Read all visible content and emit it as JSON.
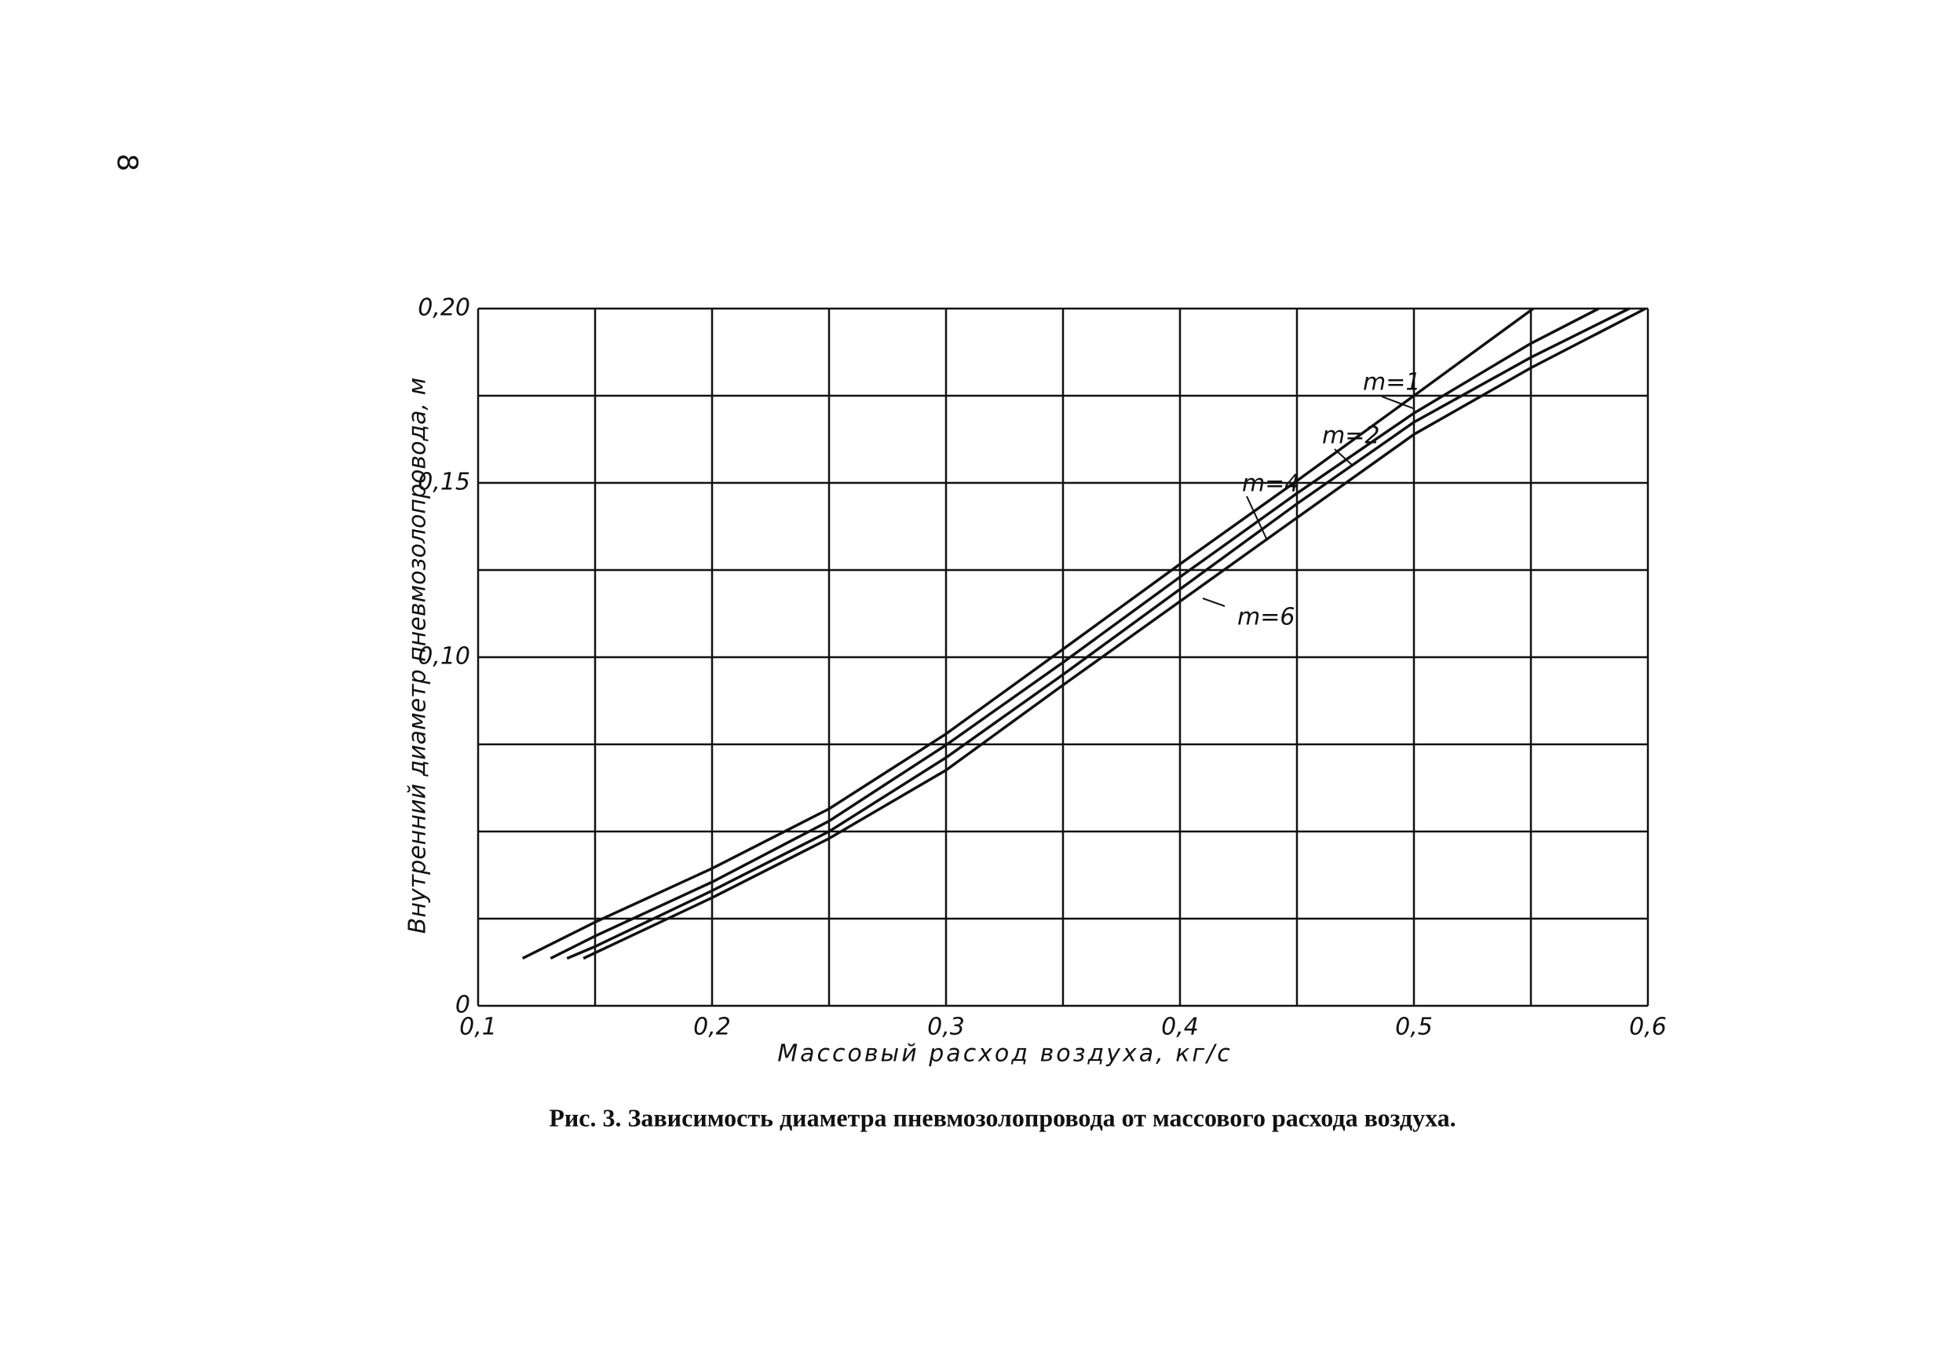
{
  "page_number": "8",
  "chart_data": {
    "type": "line",
    "y_label": "Внутренний диаметр пневмозолопровода, м",
    "x_label": "Массовый расход воздуха, кг/с",
    "caption": "Рис. 3. Зависимость диаметра пневмозолопровода от массового расхода воздуха.",
    "xlim": [
      0.1,
      0.6
    ],
    "ylim": [
      0,
      0.2
    ],
    "xticks": [
      {
        "value": 0.1,
        "label": "0,1"
      },
      {
        "value": 0.2,
        "label": "0,2"
      },
      {
        "value": 0.3,
        "label": "0,3"
      },
      {
        "value": 0.4,
        "label": "0,4"
      },
      {
        "value": 0.5,
        "label": "0,5"
      },
      {
        "value": 0.6,
        "label": "0,6"
      }
    ],
    "yticks": [
      0,
      {
        "value": 0.1,
        "label": "0,10"
      },
      {
        "value": 0.15,
        "label": "0,15"
      },
      {
        "value": 0.2,
        "label": "0,20"
      }
    ],
    "xgrid": [
      0.1,
      0.15,
      0.2,
      0.25,
      0.3,
      0.35,
      0.4,
      0.45,
      0.5,
      0.55,
      0.6
    ],
    "ygrid": [
      0,
      0.025,
      0.05,
      0.075,
      0.1,
      0.125,
      0.15,
      0.175,
      0.2
    ],
    "grid": true,
    "series": [
      {
        "name": "m=1",
        "color": "#111111",
        "x": [
          0.119,
          0.15,
          0.2,
          0.25,
          0.3,
          0.35,
          0.4,
          0.45,
          0.5,
          0.551
        ],
        "values": [
          0.0136,
          0.024,
          0.0394,
          0.0565,
          0.078,
          0.1023,
          0.1267,
          0.1506,
          0.175,
          0.2
        ]
      },
      {
        "name": "m=2",
        "color": "#111111",
        "x": [
          0.131,
          0.15,
          0.2,
          0.25,
          0.3,
          0.35,
          0.4,
          0.45,
          0.5,
          0.55,
          0.579
        ],
        "values": [
          0.0136,
          0.02,
          0.0355,
          0.053,
          0.0748,
          0.0985,
          0.123,
          0.147,
          0.17,
          0.19,
          0.2
        ]
      },
      {
        "name": "m=4",
        "color": "#111111",
        "x": [
          0.138,
          0.15,
          0.2,
          0.25,
          0.3,
          0.35,
          0.4,
          0.45,
          0.5,
          0.55,
          0.592
        ],
        "values": [
          0.0136,
          0.017,
          0.033,
          0.05,
          0.0712,
          0.095,
          0.1195,
          0.144,
          0.1674,
          0.186,
          0.2
        ]
      },
      {
        "name": "m=6",
        "color": "#111111",
        "x": [
          0.145,
          0.2,
          0.25,
          0.3,
          0.35,
          0.4,
          0.45,
          0.5,
          0.55,
          0.599
        ],
        "values": [
          0.0136,
          0.031,
          0.048,
          0.0676,
          0.092,
          0.116,
          0.14,
          0.1639,
          0.183,
          0.2
        ]
      }
    ]
  }
}
